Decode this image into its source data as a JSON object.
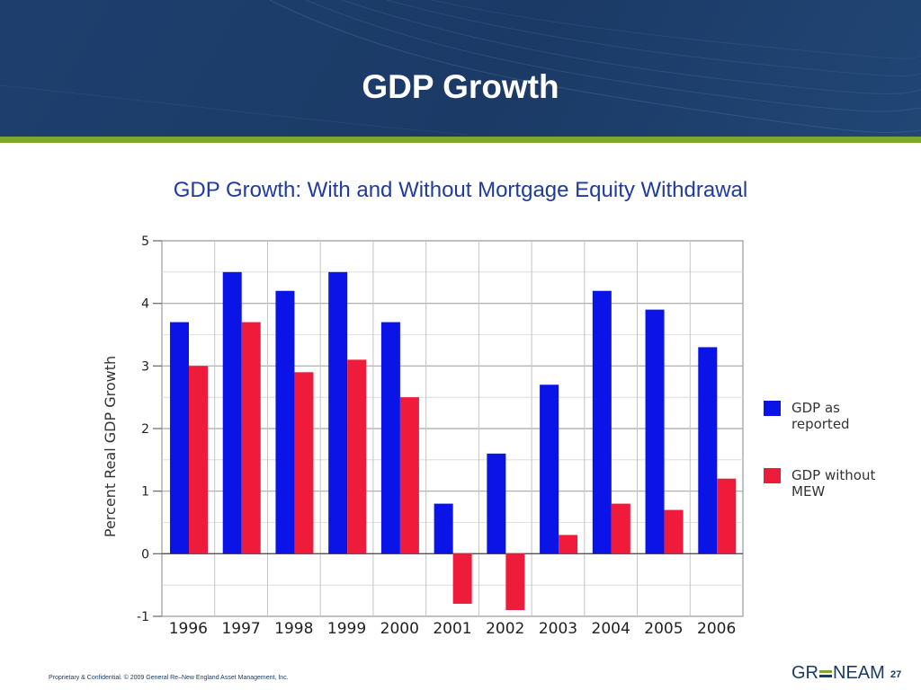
{
  "slide": {
    "title": "GDP Growth",
    "footer": "Proprietary & Confidential. © 2009 General Re–New England Asset Management, Inc.",
    "logo": [
      "GR",
      "NEAM"
    ],
    "page_number": "27"
  },
  "colors": {
    "header": "#1b3a66",
    "stripe": "#7da82a",
    "title_text": "#1f3b9e",
    "series_blue": "#0a14e6",
    "series_red": "#ee1c3a"
  },
  "chart_data": {
    "type": "bar",
    "title": "GDP Growth:  With and Without Mortgage Equity Withdrawal",
    "xlabel": "",
    "ylabel": "Percent Real GDP Growth",
    "ylim": [
      -1,
      5
    ],
    "yticks": [
      "-1",
      "0",
      "1",
      "2",
      "3",
      "4",
      "5"
    ],
    "grid": true,
    "legend_position": "right",
    "categories": [
      "1996",
      "1997",
      "1998",
      "1999",
      "2000",
      "2001",
      "2002",
      "2003",
      "2004",
      "2005",
      "2006"
    ],
    "series": [
      {
        "name": "GDP as reported",
        "legend_lines": [
          "GDP as",
          "reported"
        ],
        "color": "#0a14e6",
        "values": [
          3.7,
          4.5,
          4.2,
          4.5,
          3.7,
          0.8,
          1.6,
          2.7,
          4.2,
          3.9,
          3.3
        ]
      },
      {
        "name": "GDP without MEW",
        "legend_lines": [
          "GDP without",
          "MEW"
        ],
        "color": "#ee1c3a",
        "values": [
          3.0,
          3.7,
          2.9,
          3.1,
          2.5,
          -0.8,
          -0.9,
          0.3,
          0.8,
          0.7,
          1.2
        ]
      }
    ]
  }
}
